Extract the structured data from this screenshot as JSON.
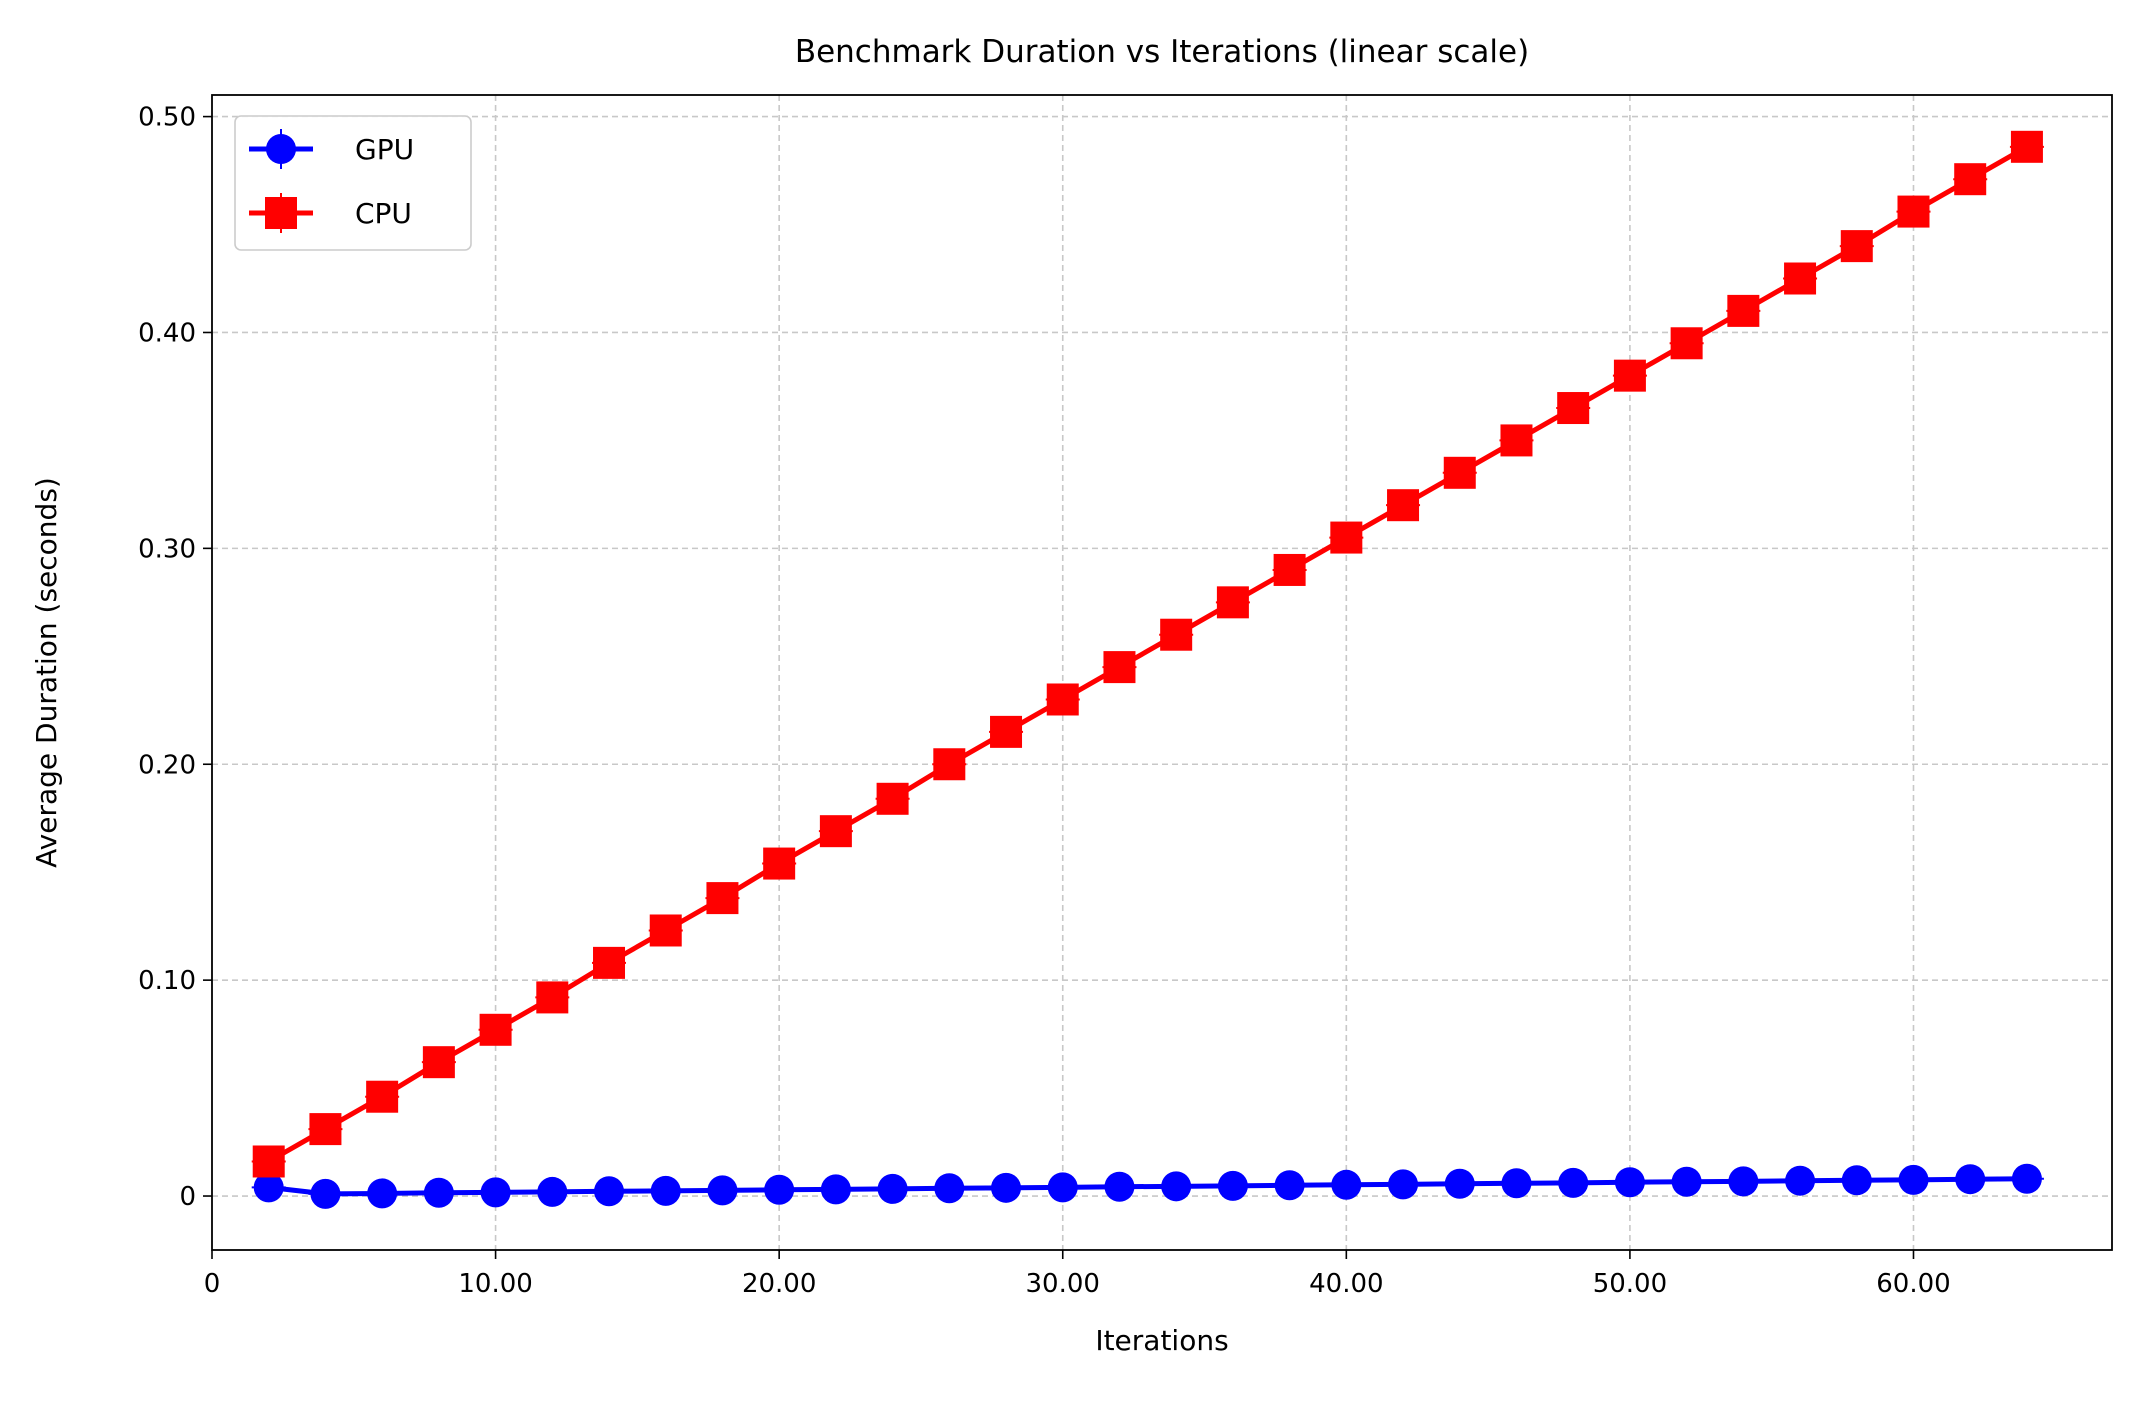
{
  "chart_data": {
    "type": "line",
    "title": "Benchmark Duration vs Iterations (linear scale)",
    "xlabel": "Iterations",
    "ylabel": "Average Duration (seconds)",
    "xlim": [
      0,
      67
    ],
    "ylim": [
      -0.025,
      0.51
    ],
    "x_ticks": [
      0,
      10,
      20,
      30,
      40,
      50,
      60
    ],
    "x_tick_labels": [
      "0",
      "10.00",
      "20.00",
      "30.00",
      "40.00",
      "50.00",
      "60.00"
    ],
    "y_ticks": [
      0,
      0.1,
      0.2,
      0.3,
      0.4,
      0.5
    ],
    "y_tick_labels": [
      "0",
      "0.10",
      "0.20",
      "0.30",
      "0.40",
      "0.50"
    ],
    "grid": true,
    "legend_position": "top-left",
    "x": [
      2,
      4,
      6,
      8,
      10,
      12,
      14,
      16,
      18,
      20,
      22,
      24,
      26,
      28,
      30,
      32,
      34,
      36,
      38,
      40,
      42,
      44,
      46,
      48,
      50,
      52,
      54,
      56,
      58,
      60,
      62,
      64
    ],
    "series": [
      {
        "name": "GPU",
        "color": "#0000ff",
        "marker": "circle",
        "values": [
          0.004,
          0.001,
          0.0012,
          0.0015,
          0.0017,
          0.0019,
          0.0022,
          0.0024,
          0.0026,
          0.0029,
          0.0031,
          0.0033,
          0.0036,
          0.0038,
          0.004,
          0.0043,
          0.0045,
          0.0047,
          0.005,
          0.0052,
          0.0054,
          0.0057,
          0.0059,
          0.0061,
          0.0064,
          0.0066,
          0.0068,
          0.0071,
          0.0073,
          0.0075,
          0.0078,
          0.008
        ]
      },
      {
        "name": "CPU",
        "color": "#ff0000",
        "marker": "square",
        "values": [
          0.016,
          0.031,
          0.046,
          0.062,
          0.077,
          0.092,
          0.108,
          0.123,
          0.138,
          0.154,
          0.169,
          0.184,
          0.2,
          0.215,
          0.23,
          0.245,
          0.26,
          0.275,
          0.29,
          0.305,
          0.32,
          0.335,
          0.35,
          0.365,
          0.38,
          0.395,
          0.41,
          0.425,
          0.44,
          0.456,
          0.471,
          0.486
        ]
      }
    ]
  }
}
